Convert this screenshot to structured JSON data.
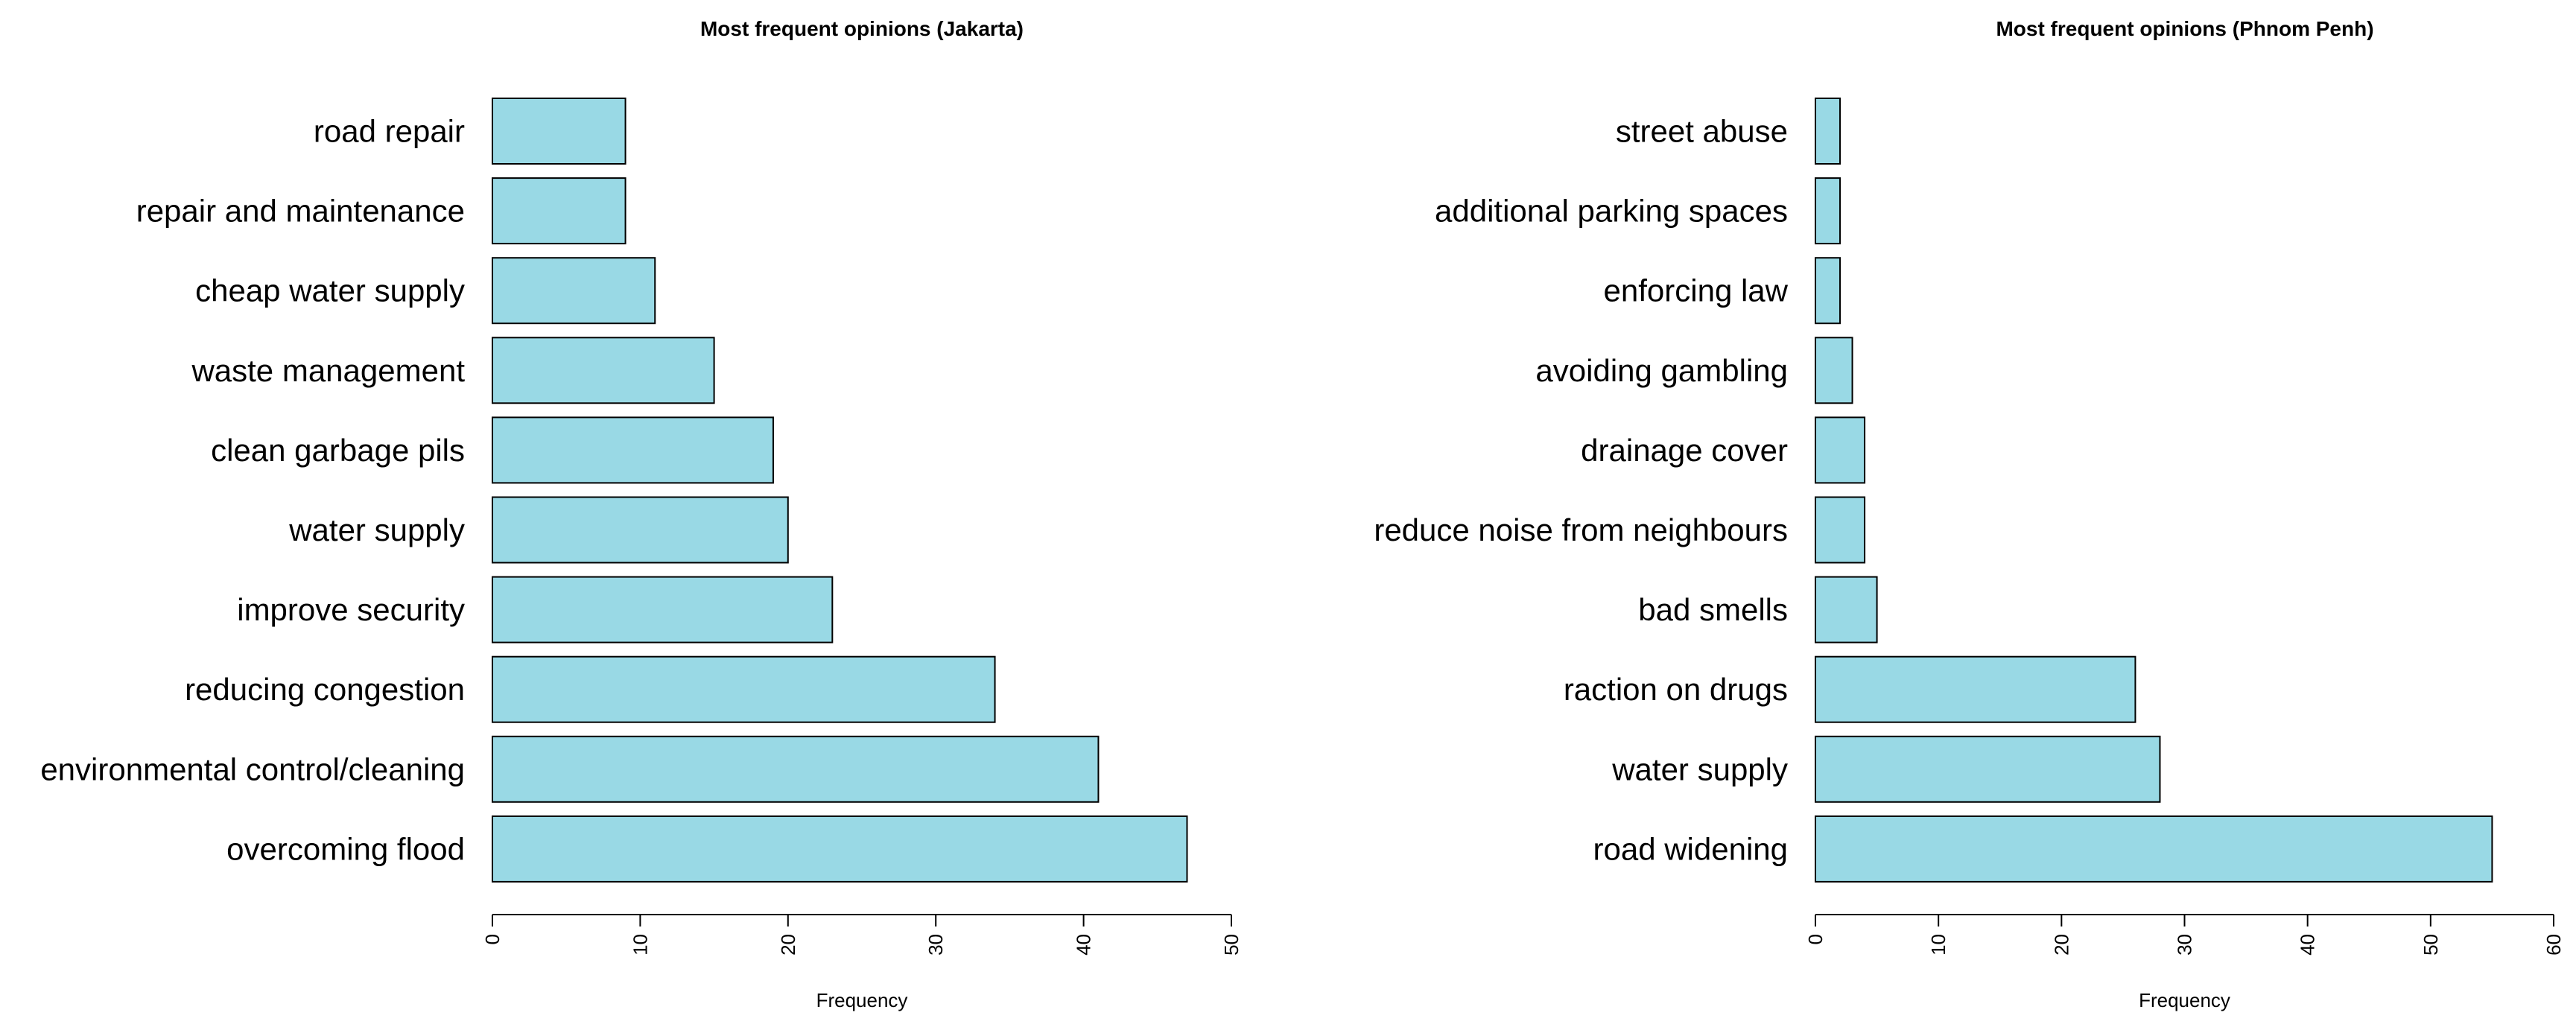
{
  "chart_data": [
    {
      "type": "bar",
      "orientation": "horizontal",
      "title": "Most frequent opinions (Jakarta)",
      "xlabel": "Frequency",
      "ylabel": "",
      "xlim": [
        0,
        50
      ],
      "x_ticks": [
        "0",
        "10",
        "20",
        "30",
        "40",
        "50"
      ],
      "grid": false,
      "categories": [
        "road repair",
        "repair and maintenance",
        "cheap water supply",
        "waste management",
        "clean garbage pils",
        "water supply",
        "improve security",
        "reducing congestion",
        "environmental control/cleaning",
        "overcoming flood"
      ],
      "values": [
        9,
        9,
        11,
        15,
        19,
        20,
        23,
        34,
        41,
        47
      ],
      "bar_color": "#99D9E5"
    },
    {
      "type": "bar",
      "orientation": "horizontal",
      "title": "Most frequent opinions (Phnom Penh)",
      "xlabel": "Frequency",
      "ylabel": "",
      "xlim": [
        0,
        60
      ],
      "x_ticks": [
        "0",
        "10",
        "20",
        "30",
        "40",
        "50",
        "60"
      ],
      "grid": false,
      "categories": [
        "street abuse",
        "additional parking spaces",
        "enforcing law",
        "avoiding gambling",
        "drainage cover",
        "reduce noise from neighbours",
        "bad smells",
        "raction on drugs",
        "water supply",
        "road widening"
      ],
      "values": [
        2,
        2,
        2,
        3,
        4,
        4,
        5,
        26,
        28,
        55
      ],
      "bar_color": "#99D9E5"
    }
  ]
}
